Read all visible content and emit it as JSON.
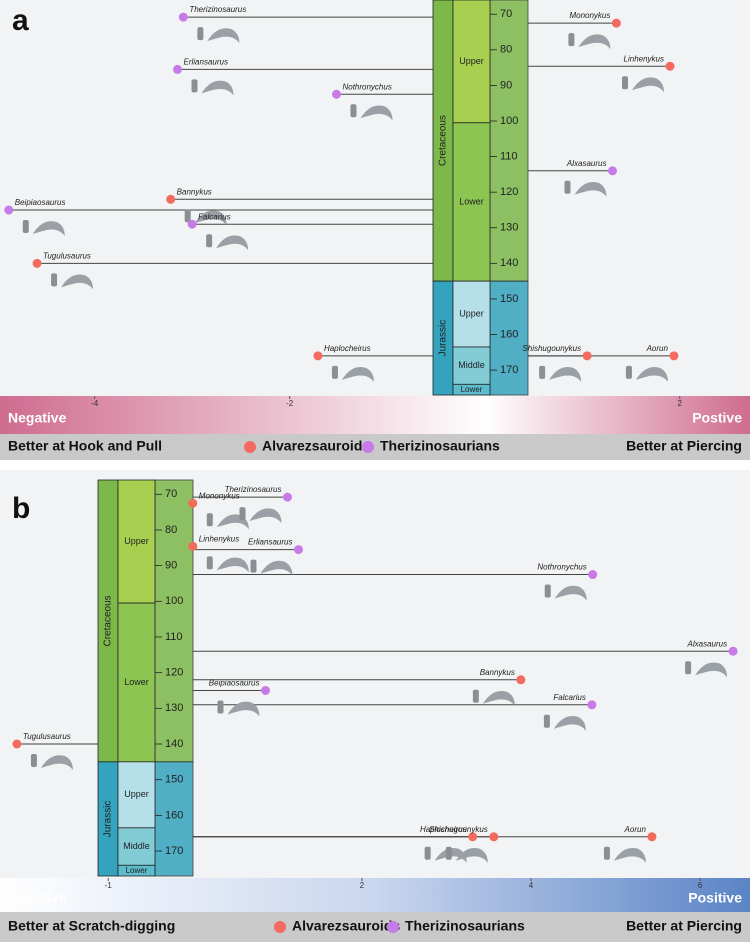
{
  "chart_data": [
    {
      "type": "scatter",
      "panel": "a",
      "xlim": [
        -4.97,
        2.72
      ],
      "xticks": [
        -4,
        -2,
        2
      ],
      "ylim": [
        66,
        177
      ],
      "yticks": [
        70,
        80,
        90,
        100,
        110,
        120,
        130,
        140,
        150,
        160,
        170
      ],
      "periods": [
        {
          "name": "Cretaceous",
          "from": 66,
          "to": 145,
          "color": "#7cb84a"
        },
        {
          "name": "Jurassic",
          "from": 145,
          "to": 177,
          "color": "#34a3bd"
        }
      ],
      "epochs": [
        {
          "name": "Upper",
          "from": 66,
          "to": 100.5,
          "color": "#a8d050"
        },
        {
          "name": "Lower",
          "from": 100.5,
          "to": 145,
          "color": "#8dc553"
        },
        {
          "name": "Upper",
          "from": 145,
          "to": 163.5,
          "color": "#b5e0ea"
        },
        {
          "name": "Middle",
          "from": 163.5,
          "to": 174,
          "color": "#82ccd6"
        },
        {
          "name": "Lower",
          "from": 174,
          "to": 177,
          "color": "#5cbccb"
        }
      ],
      "gradient_left": "Negative",
      "gradient_right": "Postive",
      "gradient_colors": [
        "#cf6c8f",
        "#ffffff",
        "#cf6c8f"
      ],
      "footer_left": "Better at Hook and Pull",
      "footer_right": "Better at Piercing",
      "series": [
        {
          "name": "Alvarezsauroids",
          "color": "#f26b5e",
          "labels": [
            "Mononykus",
            "Linhenykus",
            "Bannykus",
            "Tugulusaurus",
            "Haplocheirus",
            "Shishugounykus",
            "Aorun"
          ],
          "x": [
            1.35,
            1.9,
            -3.22,
            -4.59,
            -1.71,
            1.05,
            1.94
          ],
          "values": [
            72.5,
            84.6,
            122,
            140,
            166,
            166,
            166
          ]
        },
        {
          "name": "Therizinosaurians",
          "color": "#c77be8",
          "labels": [
            "Therizinosaurus",
            "Erliansaurus",
            "Nothronychus",
            "Alxasaurus",
            "Beipiaosaurus",
            "Falcarius"
          ],
          "x": [
            -3.09,
            -3.15,
            -1.52,
            1.31,
            -4.88,
            -3.0
          ],
          "values": [
            70.8,
            85.5,
            92.5,
            114,
            125,
            129
          ]
        }
      ]
    },
    {
      "type": "scatter",
      "panel": "b",
      "xlim": [
        -2.28,
        6.59
      ],
      "xticks": [
        -1,
        2,
        4,
        6
      ],
      "ylim": [
        66,
        177
      ],
      "yticks": [
        70,
        80,
        90,
        100,
        110,
        120,
        130,
        140,
        150,
        160,
        170
      ],
      "periods": [
        {
          "name": "Cretaceous",
          "from": 66,
          "to": 145,
          "color": "#7cb84a"
        },
        {
          "name": "Jurassic",
          "from": 145,
          "to": 177,
          "color": "#34a3bd"
        }
      ],
      "epochs": [
        {
          "name": "Upper",
          "from": 66,
          "to": 100.5,
          "color": "#a8d050"
        },
        {
          "name": "Lower",
          "from": 100.5,
          "to": 145,
          "color": "#8dc553"
        },
        {
          "name": "Upper",
          "from": 145,
          "to": 163.5,
          "color": "#b5e0ea"
        },
        {
          "name": "Middle",
          "from": 163.5,
          "to": 174,
          "color": "#82ccd6"
        },
        {
          "name": "Lower",
          "from": 174,
          "to": 177,
          "color": "#5cbccb"
        }
      ],
      "gradient_left": "Negative",
      "gradient_right": "Positive",
      "gradient_colors": [
        "#ffffff",
        "#c9d6ee",
        "#5b84c6"
      ],
      "footer_left": "Better at Scratch-digging",
      "footer_right": "Better at Piercing",
      "series": [
        {
          "name": "Alvarezsauroids",
          "color": "#f26b5e",
          "labels": [
            "Mononykus",
            "Linhenykus",
            "Bannykus",
            "Tugulusaurus",
            "Haplocheirus",
            "Shishugounykus",
            "Aorun"
          ],
          "x": [
            0.0,
            0.0,
            3.88,
            -2.08,
            3.31,
            3.56,
            5.43
          ],
          "values": [
            72.5,
            84.6,
            122,
            140,
            166,
            166,
            166
          ]
        },
        {
          "name": "Therizinosaurians",
          "color": "#c77be8",
          "labels": [
            "Therizinosaurus",
            "Erliansaurus",
            "Nothronychus",
            "Alxasaurus",
            "Beipiaosaurus",
            "Falcarius"
          ],
          "x": [
            1.12,
            1.25,
            4.73,
            6.39,
            0.86,
            4.72
          ],
          "values": [
            70.8,
            85.5,
            92.5,
            114,
            125,
            129
          ]
        }
      ]
    }
  ]
}
